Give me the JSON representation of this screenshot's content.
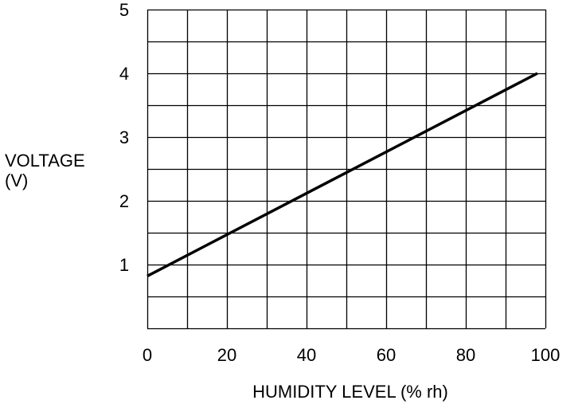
{
  "chart_data": {
    "type": "line",
    "title": "",
    "xlabel": "HUMIDITY LEVEL (% rh)",
    "ylabel_lines": [
      "VOLTAGE",
      "(V)"
    ],
    "xlim": [
      0,
      100
    ],
    "ylim": [
      0,
      5
    ],
    "x_ticks": [
      0,
      20,
      40,
      60,
      80,
      100
    ],
    "y_ticks": [
      1,
      2,
      3,
      4,
      5
    ],
    "x_grid_step": 10,
    "y_grid_step": 0.5,
    "grid": true,
    "series": [
      {
        "x": [
          0,
          98
        ],
        "y": [
          0.82,
          4.0
        ]
      }
    ],
    "colors": {
      "line": "#000000",
      "grid": "#000000",
      "text": "#000000"
    }
  }
}
